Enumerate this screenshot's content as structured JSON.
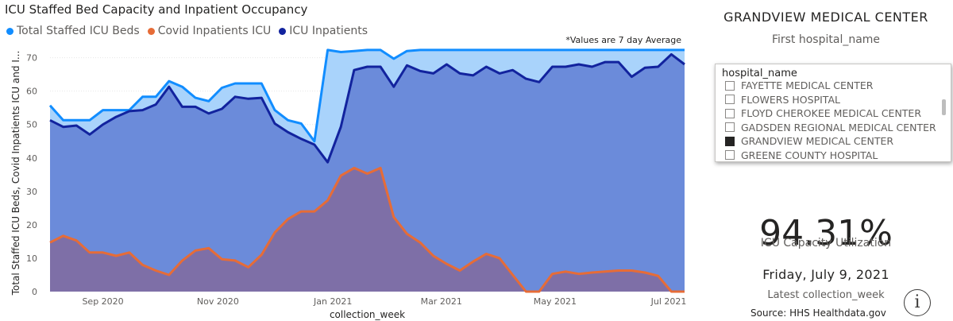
{
  "chart_data": {
    "type": "area",
    "title": "ICU Staffed Bed Capacity and Inpatient Occupancy",
    "note": "*Values are 7 day Average",
    "xlabel": "collection_week",
    "ylabel": "Total Staffed ICU Beds, Covid Inpatients ICU and I...",
    "ylim": [
      0,
      73
    ],
    "yticks": [
      0,
      10,
      20,
      30,
      40,
      50,
      60,
      70
    ],
    "x_ticks": [
      {
        "label": "Sep 2020",
        "index": 4
      },
      {
        "label": "Nov 2020",
        "index": 12.7
      },
      {
        "label": "Jan 2021",
        "index": 21.4
      },
      {
        "label": "Mar 2021",
        "index": 29.6
      },
      {
        "label": "May 2021",
        "index": 38.2
      },
      {
        "label": "Jul 2021",
        "index": 46.8
      }
    ],
    "series": [
      {
        "name": "Total Staffed ICU Beds",
        "color": "#118DFF",
        "values": [
          55.7,
          51.3,
          51.3,
          51.3,
          54.3,
          54.3,
          54.3,
          58.3,
          58.3,
          63,
          61.3,
          58,
          57,
          61,
          62.3,
          62.3,
          62.3,
          54.3,
          51.3,
          50.3,
          45,
          72.3,
          71.7,
          72,
          72.3,
          72.3,
          69.7,
          72,
          72.3,
          72.3,
          72.3,
          72.3,
          72.3,
          72.3,
          72.3,
          72.3,
          72.3,
          72.3,
          72.3,
          72.3,
          72.3,
          72.3,
          72.3,
          72.3,
          72.3,
          72.3,
          72.3,
          72.3,
          72.3
        ]
      },
      {
        "name": "Covid Inpatients ICU",
        "color": "#E66C37",
        "values": [
          14.7,
          16.7,
          15.3,
          11.7,
          11.7,
          10.7,
          11.7,
          8,
          6.3,
          5,
          9.3,
          12.3,
          13,
          9.7,
          9.3,
          7.3,
          11,
          17.7,
          21.7,
          24,
          24,
          27.3,
          34.7,
          37,
          35.3,
          37,
          22.3,
          17.3,
          14.7,
          10.7,
          8.3,
          6.3,
          9,
          11.3,
          10,
          5,
          0,
          0,
          5.3,
          6,
          5.3,
          5.7,
          6,
          6.3,
          6.3,
          5.7,
          4.7,
          0,
          0
        ]
      },
      {
        "name": "ICU Inpatients",
        "color": "#12239E",
        "values": [
          51.3,
          49.3,
          49.7,
          47,
          50,
          52.3,
          54,
          54.3,
          56,
          61.3,
          55.3,
          55.3,
          53.3,
          54.7,
          58.3,
          57.7,
          58,
          50.3,
          47.7,
          45.7,
          44,
          38.7,
          49.3,
          66.3,
          67.3,
          67.3,
          61.3,
          67.7,
          66,
          65.3,
          68,
          65.3,
          64.7,
          67.3,
          65.3,
          66.3,
          63.7,
          62.7,
          67.3,
          67.3,
          68,
          67.3,
          68.7,
          68.7,
          64.3,
          67,
          67.3,
          71,
          68
        ]
      }
    ]
  },
  "legend": [
    {
      "label": "Total Staffed ICU Beds",
      "color": "#118DFF"
    },
    {
      "label": "Covid Inpatients ICU",
      "color": "#E66C37"
    },
    {
      "label": "ICU Inpatients",
      "color": "#12239E"
    }
  ],
  "hospital": {
    "title": "GRANDVIEW MEDICAL CENTER",
    "subtitle": "First hospital_name"
  },
  "slicer": {
    "header": "hospital_name",
    "items": [
      {
        "label": "FAYETTE MEDICAL CENTER",
        "checked": false
      },
      {
        "label": "FLOWERS HOSPITAL",
        "checked": false
      },
      {
        "label": "FLOYD CHEROKEE MEDICAL CENTER",
        "checked": false
      },
      {
        "label": "GADSDEN REGIONAL MEDICAL CENTER",
        "checked": false
      },
      {
        "label": "GRANDVIEW MEDICAL CENTER",
        "checked": true
      },
      {
        "label": "GREENE COUNTY HOSPITAL",
        "checked": false
      }
    ]
  },
  "kpi": {
    "value": "94.31%",
    "label": "ICU Capacity Utilization"
  },
  "date": {
    "value": "Friday, July 9, 2021",
    "label": "Latest collection_week"
  },
  "source": "Source: HHS Healthdata.gov",
  "info_icon": "i"
}
